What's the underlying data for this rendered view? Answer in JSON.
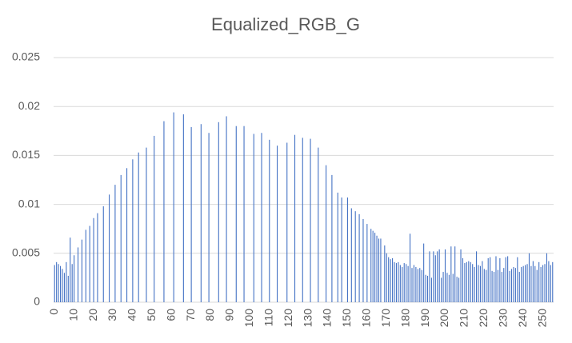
{
  "chart_data": {
    "type": "bar",
    "title": "Equalized_RGB_G",
    "categories": [
      0,
      null,
      null,
      null,
      null,
      null,
      null,
      null,
      null,
      null,
      10,
      null,
      null,
      null,
      null,
      null,
      null,
      null,
      null,
      null,
      20,
      null,
      null,
      null,
      null,
      null,
      null,
      null,
      null,
      null,
      30,
      null,
      null,
      null,
      null,
      null,
      null,
      null,
      null,
      null,
      40,
      null,
      null,
      null,
      null,
      null,
      null,
      null,
      null,
      null,
      50,
      null,
      null,
      null,
      null,
      null,
      null,
      null,
      null,
      null,
      60,
      null,
      null,
      null,
      null,
      null,
      null,
      null,
      null,
      null,
      70,
      null,
      null,
      null,
      null,
      null,
      null,
      null,
      null,
      null,
      80,
      null,
      null,
      null,
      null,
      null,
      null,
      null,
      null,
      null,
      90,
      null,
      null,
      null,
      null,
      null,
      null,
      null,
      null,
      null,
      100,
      null,
      null,
      null,
      null,
      null,
      null,
      null,
      null,
      null,
      110,
      null,
      null,
      null,
      null,
      null,
      null,
      null,
      null,
      null,
      120,
      null,
      null,
      null,
      null,
      null,
      null,
      null,
      null,
      null,
      130,
      null,
      null,
      null,
      null,
      null,
      null,
      null,
      null,
      null,
      140,
      null,
      null,
      null,
      null,
      null,
      null,
      null,
      null,
      null,
      150,
      null,
      null,
      null,
      null,
      null,
      null,
      null,
      null,
      null,
      160,
      null,
      null,
      null,
      null,
      null,
      null,
      null,
      null,
      null,
      170,
      null,
      null,
      null,
      null,
      null,
      null,
      null,
      null,
      null,
      180,
      null,
      null,
      null,
      null,
      null,
      null,
      null,
      null,
      null,
      190,
      null,
      null,
      null,
      null,
      null,
      null,
      null,
      null,
      null,
      200,
      null,
      null,
      null,
      null,
      null,
      null,
      null,
      null,
      null,
      210,
      null,
      null,
      null,
      null,
      null,
      null,
      null,
      null,
      null,
      220,
      null,
      null,
      null,
      null,
      null,
      null,
      null,
      null,
      null,
      230,
      null,
      null,
      null,
      null,
      null,
      null,
      null,
      null,
      null,
      240,
      null,
      null,
      null,
      null,
      null,
      null,
      null,
      null,
      null,
      250,
      null,
      null,
      null,
      null,
      null
    ],
    "values": [
      0.0038,
      0.0041,
      0.0039,
      0.0037,
      0.0034,
      0.003,
      0.0041,
      0.0027,
      0.0066,
      0.0039,
      0.0048,
      0,
      0.0056,
      0,
      0.0064,
      0,
      0.0074,
      0,
      0.0078,
      0,
      0.0086,
      0,
      0.0091,
      0,
      0,
      0.0098,
      0,
      0,
      0.011,
      0,
      0,
      0.012,
      0,
      0,
      0.013,
      0,
      0,
      0.0137,
      0,
      0,
      0.0146,
      0,
      0,
      0.0153,
      0,
      0,
      0,
      0.0158,
      0,
      0,
      0,
      0.017,
      0,
      0,
      0,
      0,
      0.0185,
      0,
      0,
      0,
      0,
      0.0194,
      0,
      0,
      0,
      0,
      0.0192,
      0,
      0,
      0,
      0.0179,
      0,
      0,
      0,
      0,
      0.0182,
      0,
      0,
      0,
      0.0173,
      0,
      0,
      0,
      0,
      0.0184,
      0,
      0,
      0,
      0.019,
      0,
      0,
      0,
      0,
      0.018,
      0,
      0,
      0,
      0.018,
      0,
      0,
      0,
      0,
      0.0172,
      0,
      0,
      0,
      0.0173,
      0,
      0,
      0,
      0.0166,
      0,
      0,
      0,
      0.016,
      0,
      0,
      0,
      0,
      0.0163,
      0,
      0,
      0,
      0.0171,
      0,
      0,
      0,
      0.0168,
      0,
      0,
      0,
      0.0167,
      0,
      0,
      0,
      0.0158,
      0,
      0,
      0,
      0.014,
      0,
      0,
      0.013,
      0,
      0,
      0.0112,
      0,
      0.0107,
      0,
      0,
      0.0107,
      0,
      0.0096,
      0,
      0.0093,
      0,
      0.009,
      0,
      0.0085,
      0,
      0.008,
      0,
      0.0075,
      0.0073,
      0.0071,
      0.0068,
      0.0065,
      0.0065,
      0,
      0.0058,
      0.005,
      0.0046,
      0.0044,
      0.0045,
      0.0041,
      0.004,
      0.0041,
      0.0038,
      0.0036,
      0.004,
      0.0039,
      0.0037,
      0.007,
      0.0035,
      0.0038,
      0.0036,
      0.0034,
      0.0035,
      0.0033,
      0.006,
      0.0028,
      0.0027,
      0.0052,
      0.0025,
      0.0052,
      0.0048,
      0.0052,
      0.0054,
      0.0025,
      0.0031,
      0.0054,
      0.003,
      0.0028,
      0.0057,
      0.0029,
      0.0057,
      0.0026,
      0.0025,
      0.0054,
      0.0045,
      0.004,
      0.0041,
      0.0042,
      0.0041,
      0.0039,
      0.0036,
      0.0052,
      0.0038,
      0.0037,
      0.0042,
      0.0034,
      0.0033,
      0.0045,
      0.0046,
      0.0032,
      0.0031,
      0.0047,
      0.0033,
      0.0045,
      0.0031,
      0.0035,
      0.0046,
      0.0047,
      0.0032,
      0.0034,
      0.0036,
      0.0035,
      0.0046,
      0.0031,
      0.0036,
      0.0037,
      0.0038,
      0.0039,
      0.005,
      0.0037,
      0.0042,
      0.0037,
      0.0033,
      0.0041,
      0.0036,
      0.0038,
      0.0039,
      0.005,
      0.0042,
      0.0038,
      0.0041
    ],
    "color": "#4472c4",
    "ylim": [
      0,
      0.025
    ],
    "yticks": [
      0,
      0.005,
      0.01,
      0.015,
      0.02,
      0.025
    ],
    "grid": true
  }
}
